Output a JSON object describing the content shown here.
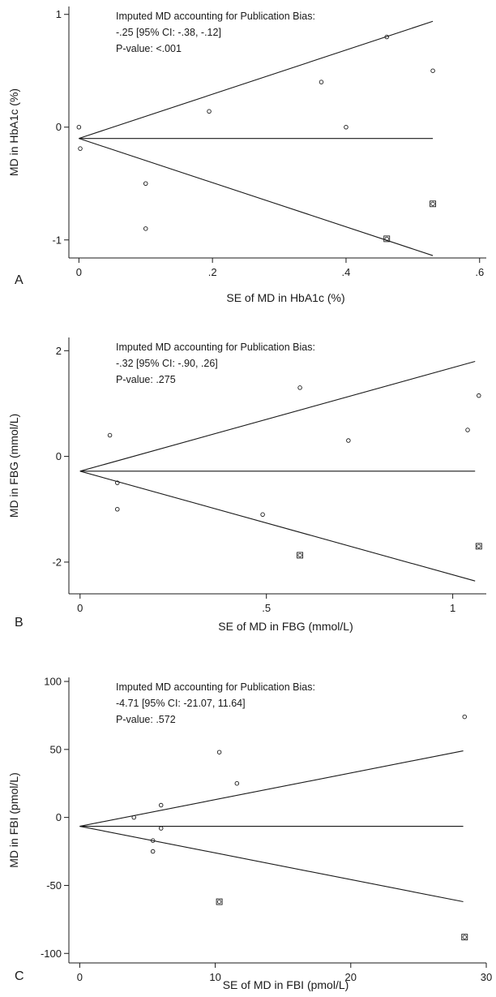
{
  "chart_data": [
    {
      "type": "scatter",
      "panel_label": "A",
      "xlabel": "SE of MD in HbA1c (%)",
      "ylabel": "MD in HbA1c (%)",
      "xlim": [
        -0.015,
        0.61
      ],
      "ylim": [
        -1.16,
        1.07
      ],
      "xticks": [
        0,
        0.2,
        0.4,
        0.6
      ],
      "xtick_labels": [
        "0",
        ".2",
        ".4",
        ".6"
      ],
      "yticks": [
        1,
        0,
        -1
      ],
      "ytick_labels": [
        "1",
        "0",
        "-1"
      ],
      "annotations": [
        "Imputed MD accounting for Publication Bias:",
        "-.25 [95% CI: -.38, -.12]",
        "P-value: <.001"
      ],
      "pooled_estimate": -0.1,
      "funnel_max_x": 0.53,
      "ci_multiplier": 1.96,
      "series": [
        {
          "marker": "circle",
          "points": [
            [
              0,
              0
            ],
            [
              0.002,
              -0.19
            ],
            [
              0.1,
              -0.5
            ],
            [
              0.1,
              -0.9
            ],
            [
              0.195,
              0.14
            ],
            [
              0.363,
              0.4
            ],
            [
              0.4,
              0
            ],
            [
              0.461,
              0.8
            ],
            [
              0.53,
              0.5
            ]
          ]
        },
        {
          "marker": "square",
          "points": [
            [
              0.461,
              -0.99
            ],
            [
              0.53,
              -0.68
            ]
          ]
        }
      ]
    },
    {
      "type": "scatter",
      "panel_label": "B",
      "xlabel": "SE of MD in FBG (mmol/L)",
      "ylabel": "MD in FBG (mmol/L)",
      "xlim": [
        -0.03,
        1.09
      ],
      "ylim": [
        -2.6,
        2.25
      ],
      "xticks": [
        0,
        0.5,
        1
      ],
      "xtick_labels": [
        "0",
        ".5",
        "1"
      ],
      "yticks": [
        2,
        0,
        -2
      ],
      "ytick_labels": [
        "2",
        "0",
        "-2"
      ],
      "annotations": [
        "Imputed MD accounting for Publication Bias:",
        "-.32 [95% CI: -.90, .26]",
        "P-value: .275"
      ],
      "pooled_estimate": -0.28,
      "funnel_max_x": 1.06,
      "ci_multiplier": 1.96,
      "series": [
        {
          "marker": "circle",
          "points": [
            [
              0.08,
              0.4
            ],
            [
              0.1,
              -0.5
            ],
            [
              0.1,
              -1
            ],
            [
              0.49,
              -1.1
            ],
            [
              0.59,
              1.3
            ],
            [
              0.72,
              0.3
            ],
            [
              1.04,
              0.5
            ],
            [
              1.07,
              1.15
            ]
          ]
        },
        {
          "marker": "square",
          "points": [
            [
              0.59,
              -1.87
            ],
            [
              1.07,
              -1.7
            ]
          ]
        }
      ]
    },
    {
      "type": "scatter",
      "panel_label": "C",
      "xlabel": "SE of MD in FBI (pmol/L)",
      "ylabel": "MD in FBI (pmol/L)",
      "xlim": [
        -0.8,
        30
      ],
      "ylim": [
        -107,
        103
      ],
      "xticks": [
        0,
        10,
        20,
        30
      ],
      "xtick_labels": [
        "0",
        "10",
        "20",
        "30"
      ],
      "yticks": [
        100,
        50,
        0,
        -50,
        -100
      ],
      "ytick_labels": [
        "100",
        "50",
        "0",
        "-50",
        "-100"
      ],
      "annotations": [
        "Imputed MD accounting for Publication Bias:",
        "-4.71 [95% CI: -21.07, 11.64]",
        "P-value: .572"
      ],
      "pooled_estimate": -6.5,
      "funnel_max_x": 28.3,
      "ci_multiplier": 1.96,
      "series": [
        {
          "marker": "circle",
          "points": [
            [
              4,
              0
            ],
            [
              5.4,
              -17
            ],
            [
              5.4,
              -25
            ],
            [
              6,
              9
            ],
            [
              6,
              -8
            ],
            [
              10.3,
              48
            ],
            [
              11.6,
              25
            ],
            [
              28.4,
              74
            ]
          ]
        },
        {
          "marker": "square",
          "points": [
            [
              10.3,
              -62
            ],
            [
              28.4,
              -88
            ]
          ]
        }
      ]
    }
  ]
}
